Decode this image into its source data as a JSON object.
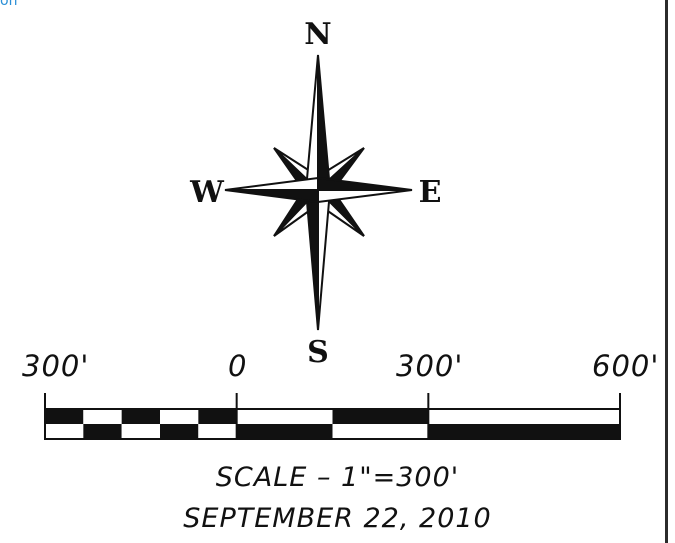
{
  "page": {
    "top_fragment": "on"
  },
  "compass": {
    "north": "N",
    "south": "S",
    "east": "E",
    "west": "W"
  },
  "scale_bar": {
    "labels": [
      "300'",
      "0",
      "300'",
      "600'"
    ],
    "values_ft": [
      -300,
      0,
      300,
      600
    ],
    "fill_color": "#111111"
  },
  "caption": {
    "scale": "SCALE – 1\"=300'",
    "date": "SEPTEMBER 22, 2010"
  }
}
